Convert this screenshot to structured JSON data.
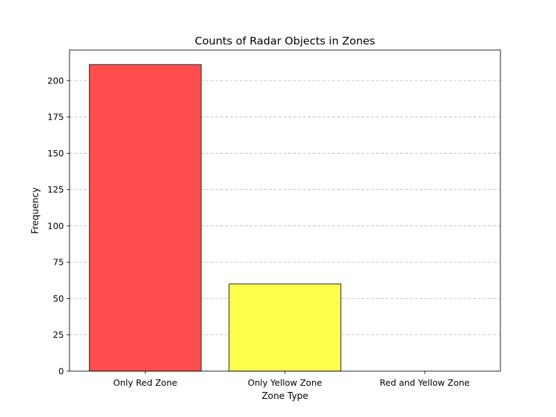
{
  "chart_data": {
    "type": "bar",
    "title": "Counts of Radar Objects in Zones",
    "xlabel": "Zone Type",
    "ylabel": "Frequency",
    "categories": [
      "Only Red Zone",
      "Only Yellow Zone",
      "Red and Yellow Zone"
    ],
    "values": [
      211,
      60,
      0
    ],
    "colors": [
      "#ff4d4d",
      "#ffff4d",
      "#cccccc"
    ],
    "edge_color": "#333333",
    "ylim": [
      0,
      221
    ],
    "yticks": [
      0,
      25,
      50,
      75,
      100,
      125,
      150,
      175,
      200
    ],
    "grid": "y-dashed"
  }
}
